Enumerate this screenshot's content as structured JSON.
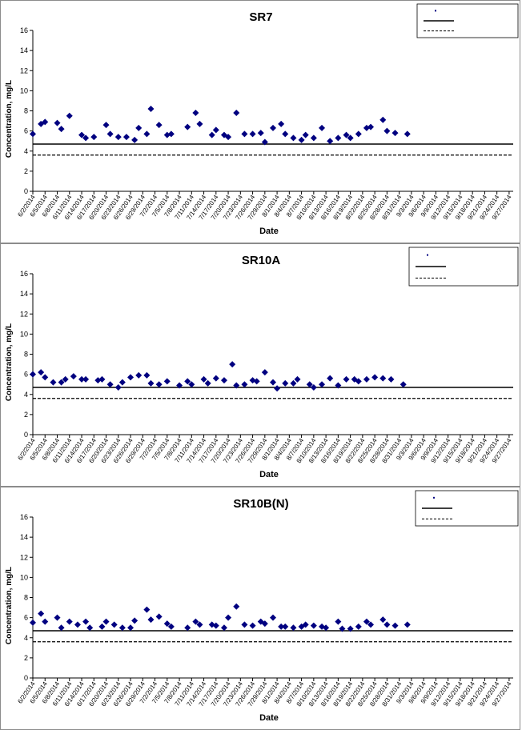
{
  "chart_data": [
    {
      "type": "scatter",
      "title": "SR7",
      "xlabel": "Date",
      "ylabel": "Concentration, mg/L",
      "ylim": [
        0,
        16
      ],
      "yticks": [
        0,
        2,
        4,
        6,
        8,
        10,
        12,
        14,
        16
      ],
      "x_start": "6/2/2014",
      "x_end": "9/28/2014",
      "xtick_labels": [
        "6/2/2014",
        "6/5/2014",
        "6/8/2014",
        "6/11/2014",
        "6/14/2014",
        "6/17/2014",
        "6/20/2014",
        "6/23/2014",
        "6/26/2014",
        "6/29/2014",
        "7/2/2014",
        "7/5/2014",
        "7/8/2014",
        "7/11/2014",
        "7/14/2014",
        "7/17/2014",
        "7/20/2014",
        "7/23/2014",
        "7/26/2014",
        "7/29/2014",
        "8/1/2014",
        "8/4/2014",
        "8/7/2014",
        "8/10/2014",
        "8/13/2014",
        "8/16/2014",
        "8/19/2014",
        "8/22/2014",
        "8/25/2014",
        "8/28/2014",
        "8/31/2014",
        "9/3/2014",
        "9/6/2014",
        "9/9/2014",
        "9/12/2014",
        "9/15/2014",
        "9/18/2014",
        "9/21/2014",
        "9/24/2014",
        "9/27/2014"
      ],
      "legend": {
        "placement": "top-right",
        "entries": [
          "",
          "",
          ""
        ]
      },
      "series": [
        {
          "marker": "diamond",
          "color": "#000080",
          "points": [
            [
              "6/2/2014",
              5.7
            ],
            [
              "6/4/2014",
              6.7
            ],
            [
              "6/5/2014",
              6.9
            ],
            [
              "6/8/2014",
              6.8
            ],
            [
              "6/9/2014",
              6.2
            ],
            [
              "6/11/2014",
              7.5
            ],
            [
              "6/14/2014",
              5.6
            ],
            [
              "6/15/2014",
              5.3
            ],
            [
              "6/17/2014",
              5.4
            ],
            [
              "6/20/2014",
              6.6
            ],
            [
              "6/21/2014",
              5.7
            ],
            [
              "6/23/2014",
              5.4
            ],
            [
              "6/25/2014",
              5.4
            ],
            [
              "6/27/2014",
              5.1
            ],
            [
              "6/28/2014",
              6.3
            ],
            [
              "6/30/2014",
              5.7
            ],
            [
              "7/1/2014",
              8.2
            ],
            [
              "7/3/2014",
              6.6
            ],
            [
              "7/5/2014",
              5.6
            ],
            [
              "7/6/2014",
              5.7
            ],
            [
              "7/10/2014",
              6.4
            ],
            [
              "7/12/2014",
              7.8
            ],
            [
              "7/13/2014",
              6.7
            ],
            [
              "7/16/2014",
              5.6
            ],
            [
              "7/17/2014",
              6.1
            ],
            [
              "7/19/2014",
              5.6
            ],
            [
              "7/20/2014",
              5.4
            ],
            [
              "7/22/2014",
              7.8
            ],
            [
              "7/24/2014",
              5.7
            ],
            [
              "7/26/2014",
              5.7
            ],
            [
              "7/28/2014",
              5.8
            ],
            [
              "7/29/2014",
              4.9
            ],
            [
              "7/31/2014",
              6.3
            ],
            [
              "8/2/2014",
              6.7
            ],
            [
              "8/3/2014",
              5.7
            ],
            [
              "8/5/2014",
              5.3
            ],
            [
              "8/7/2014",
              5.1
            ],
            [
              "8/8/2014",
              5.6
            ],
            [
              "8/10/2014",
              5.3
            ],
            [
              "8/12/2014",
              6.3
            ],
            [
              "8/14/2014",
              5.0
            ],
            [
              "8/16/2014",
              5.3
            ],
            [
              "8/18/2014",
              5.6
            ],
            [
              "8/19/2014",
              5.3
            ],
            [
              "8/21/2014",
              5.7
            ],
            [
              "8/23/2014",
              6.3
            ],
            [
              "8/24/2014",
              6.4
            ],
            [
              "8/27/2014",
              7.1
            ],
            [
              "8/28/2014",
              6.0
            ],
            [
              "8/30/2014",
              5.8
            ],
            [
              "9/2/2014",
              5.7
            ]
          ]
        },
        {
          "style": "solid",
          "color": "#000000",
          "value": 4.7
        },
        {
          "style": "dashed",
          "color": "#000000",
          "value": 3.6
        }
      ]
    },
    {
      "type": "scatter",
      "title": "SR10A",
      "xlabel": "Date",
      "ylabel": "Concentration, mg/L",
      "ylim": [
        0,
        16
      ],
      "yticks": [
        0,
        2,
        4,
        6,
        8,
        10,
        12,
        14,
        16
      ],
      "x_start": "6/2/2014",
      "x_end": "9/28/2014",
      "xtick_labels": [
        "6/2/2014",
        "6/5/2014",
        "6/8/2014",
        "6/11/2014",
        "6/14/2014",
        "6/17/2014",
        "6/20/2014",
        "6/23/2014",
        "6/26/2014",
        "6/29/2014",
        "7/2/2014",
        "7/5/2014",
        "7/8/2014",
        "7/11/2014",
        "7/14/2014",
        "7/17/2014",
        "7/20/2014",
        "7/23/2014",
        "7/26/2014",
        "7/29/2014",
        "8/1/2014",
        "8/4/2014",
        "8/7/2014",
        "8/10/2014",
        "8/13/2014",
        "8/16/2014",
        "8/19/2014",
        "8/22/2014",
        "8/25/2014",
        "8/28/2014",
        "8/31/2014",
        "9/3/2014",
        "9/6/2014",
        "9/9/2014",
        "9/12/2014",
        "9/15/2014",
        "9/18/2014",
        "9/21/2014",
        "9/24/2014",
        "9/27/2014"
      ],
      "legend": {
        "placement": "top-right",
        "entries": [
          "",
          "",
          ""
        ]
      },
      "series": [
        {
          "marker": "diamond",
          "color": "#000080",
          "points": [
            [
              "6/2/2014",
              6.0
            ],
            [
              "6/4/2014",
              6.2
            ],
            [
              "6/5/2014",
              5.7
            ],
            [
              "6/7/2014",
              5.2
            ],
            [
              "6/9/2014",
              5.2
            ],
            [
              "6/10/2014",
              5.5
            ],
            [
              "6/12/2014",
              5.8
            ],
            [
              "6/14/2014",
              5.5
            ],
            [
              "6/15/2014",
              5.5
            ],
            [
              "6/18/2014",
              5.4
            ],
            [
              "6/19/2014",
              5.5
            ],
            [
              "6/21/2014",
              5.0
            ],
            [
              "6/23/2014",
              4.7
            ],
            [
              "6/24/2014",
              5.2
            ],
            [
              "6/26/2014",
              5.7
            ],
            [
              "6/28/2014",
              5.9
            ],
            [
              "6/30/2014",
              5.9
            ],
            [
              "7/1/2014",
              5.1
            ],
            [
              "7/3/2014",
              5.0
            ],
            [
              "7/5/2014",
              5.3
            ],
            [
              "7/8/2014",
              4.9
            ],
            [
              "7/10/2014",
              5.3
            ],
            [
              "7/11/2014",
              5.0
            ],
            [
              "7/14/2014",
              5.5
            ],
            [
              "7/15/2014",
              5.1
            ],
            [
              "7/17/2014",
              5.6
            ],
            [
              "7/19/2014",
              5.4
            ],
            [
              "7/21/2014",
              7.0
            ],
            [
              "7/22/2014",
              4.9
            ],
            [
              "7/24/2014",
              5.0
            ],
            [
              "7/26/2014",
              5.4
            ],
            [
              "7/27/2014",
              5.3
            ],
            [
              "7/29/2014",
              6.2
            ],
            [
              "7/31/2014",
              5.2
            ],
            [
              "8/1/2014",
              4.6
            ],
            [
              "8/3/2014",
              5.1
            ],
            [
              "8/5/2014",
              5.1
            ],
            [
              "8/6/2014",
              5.5
            ],
            [
              "8/9/2014",
              5.0
            ],
            [
              "8/10/2014",
              4.7
            ],
            [
              "8/12/2014",
              5.0
            ],
            [
              "8/14/2014",
              5.6
            ],
            [
              "8/16/2014",
              4.9
            ],
            [
              "8/18/2014",
              5.5
            ],
            [
              "8/20/2014",
              5.5
            ],
            [
              "8/21/2014",
              5.3
            ],
            [
              "8/23/2014",
              5.5
            ],
            [
              "8/25/2014",
              5.7
            ],
            [
              "8/27/2014",
              5.6
            ],
            [
              "8/29/2014",
              5.5
            ],
            [
              "9/1/2014",
              5.0
            ]
          ]
        },
        {
          "style": "solid",
          "color": "#000000",
          "value": 4.7
        },
        {
          "style": "dashed",
          "color": "#000000",
          "value": 3.6
        }
      ]
    },
    {
      "type": "scatter",
      "title": "SR10B(N)",
      "xlabel": "Date",
      "ylabel": "Concentration, mg/L",
      "ylim": [
        0,
        16
      ],
      "yticks": [
        0,
        2,
        4,
        6,
        8,
        10,
        12,
        14,
        16
      ],
      "x_start": "6/2/2014",
      "x_end": "9/28/2014",
      "xtick_labels": [
        "6/2/2014",
        "6/5/2014",
        "6/8/2014",
        "6/11/2014",
        "6/14/2014",
        "6/17/2014",
        "6/20/2014",
        "6/23/2014",
        "6/26/2014",
        "6/29/2014",
        "7/2/2014",
        "7/5/2014",
        "7/8/2014",
        "7/11/2014",
        "7/14/2014",
        "7/17/2014",
        "7/20/2014",
        "7/23/2014",
        "7/26/2014",
        "7/29/2014",
        "8/1/2014",
        "8/4/2014",
        "8/7/2014",
        "8/10/2014",
        "8/13/2014",
        "8/16/2014",
        "8/19/2014",
        "8/22/2014",
        "8/25/2014",
        "8/28/2014",
        "8/31/2014",
        "9/3/2014",
        "9/6/2014",
        "9/9/2014",
        "9/12/2014",
        "9/15/2014",
        "9/18/2014",
        "9/21/2014",
        "9/24/2014",
        "9/27/2014"
      ],
      "legend": {
        "placement": "top-right",
        "entries": [
          "",
          "",
          ""
        ]
      },
      "series": [
        {
          "marker": "diamond",
          "color": "#000080",
          "points": [
            [
              "6/2/2014",
              5.5
            ],
            [
              "6/4/2014",
              6.4
            ],
            [
              "6/5/2014",
              5.6
            ],
            [
              "6/8/2014",
              6.0
            ],
            [
              "6/9/2014",
              5.0
            ],
            [
              "6/11/2014",
              5.6
            ],
            [
              "6/13/2014",
              5.3
            ],
            [
              "6/15/2014",
              5.6
            ],
            [
              "6/16/2014",
              5.0
            ],
            [
              "6/19/2014",
              5.1
            ],
            [
              "6/20/2014",
              5.6
            ],
            [
              "6/22/2014",
              5.3
            ],
            [
              "6/24/2014",
              5.0
            ],
            [
              "6/26/2014",
              5.0
            ],
            [
              "6/27/2014",
              5.7
            ],
            [
              "6/30/2014",
              6.8
            ],
            [
              "7/1/2014",
              5.8
            ],
            [
              "7/3/2014",
              6.1
            ],
            [
              "7/5/2014",
              5.4
            ],
            [
              "7/6/2014",
              5.1
            ],
            [
              "7/10/2014",
              5.0
            ],
            [
              "7/12/2014",
              5.6
            ],
            [
              "7/13/2014",
              5.3
            ],
            [
              "7/16/2014",
              5.3
            ],
            [
              "7/17/2014",
              5.2
            ],
            [
              "7/19/2014",
              5.0
            ],
            [
              "7/20/2014",
              6.0
            ],
            [
              "7/22/2014",
              7.1
            ],
            [
              "7/24/2014",
              5.3
            ],
            [
              "7/26/2014",
              5.2
            ],
            [
              "7/28/2014",
              5.6
            ],
            [
              "7/29/2014",
              5.4
            ],
            [
              "7/31/2014",
              6.0
            ],
            [
              "8/2/2014",
              5.1
            ],
            [
              "8/3/2014",
              5.1
            ],
            [
              "8/5/2014",
              5.0
            ],
            [
              "8/7/2014",
              5.1
            ],
            [
              "8/8/2014",
              5.3
            ],
            [
              "8/10/2014",
              5.2
            ],
            [
              "8/12/2014",
              5.1
            ],
            [
              "8/13/2014",
              5.0
            ],
            [
              "8/16/2014",
              5.6
            ],
            [
              "8/17/2014",
              4.9
            ],
            [
              "8/19/2014",
              4.9
            ],
            [
              "8/21/2014",
              5.1
            ],
            [
              "8/23/2014",
              5.6
            ],
            [
              "8/24/2014",
              5.3
            ],
            [
              "8/27/2014",
              5.8
            ],
            [
              "8/28/2014",
              5.3
            ],
            [
              "8/30/2014",
              5.2
            ],
            [
              "9/2/2014",
              5.3
            ]
          ]
        },
        {
          "style": "solid",
          "color": "#000000",
          "value": 4.7
        },
        {
          "style": "dashed",
          "color": "#000000",
          "value": 3.6
        }
      ]
    }
  ]
}
